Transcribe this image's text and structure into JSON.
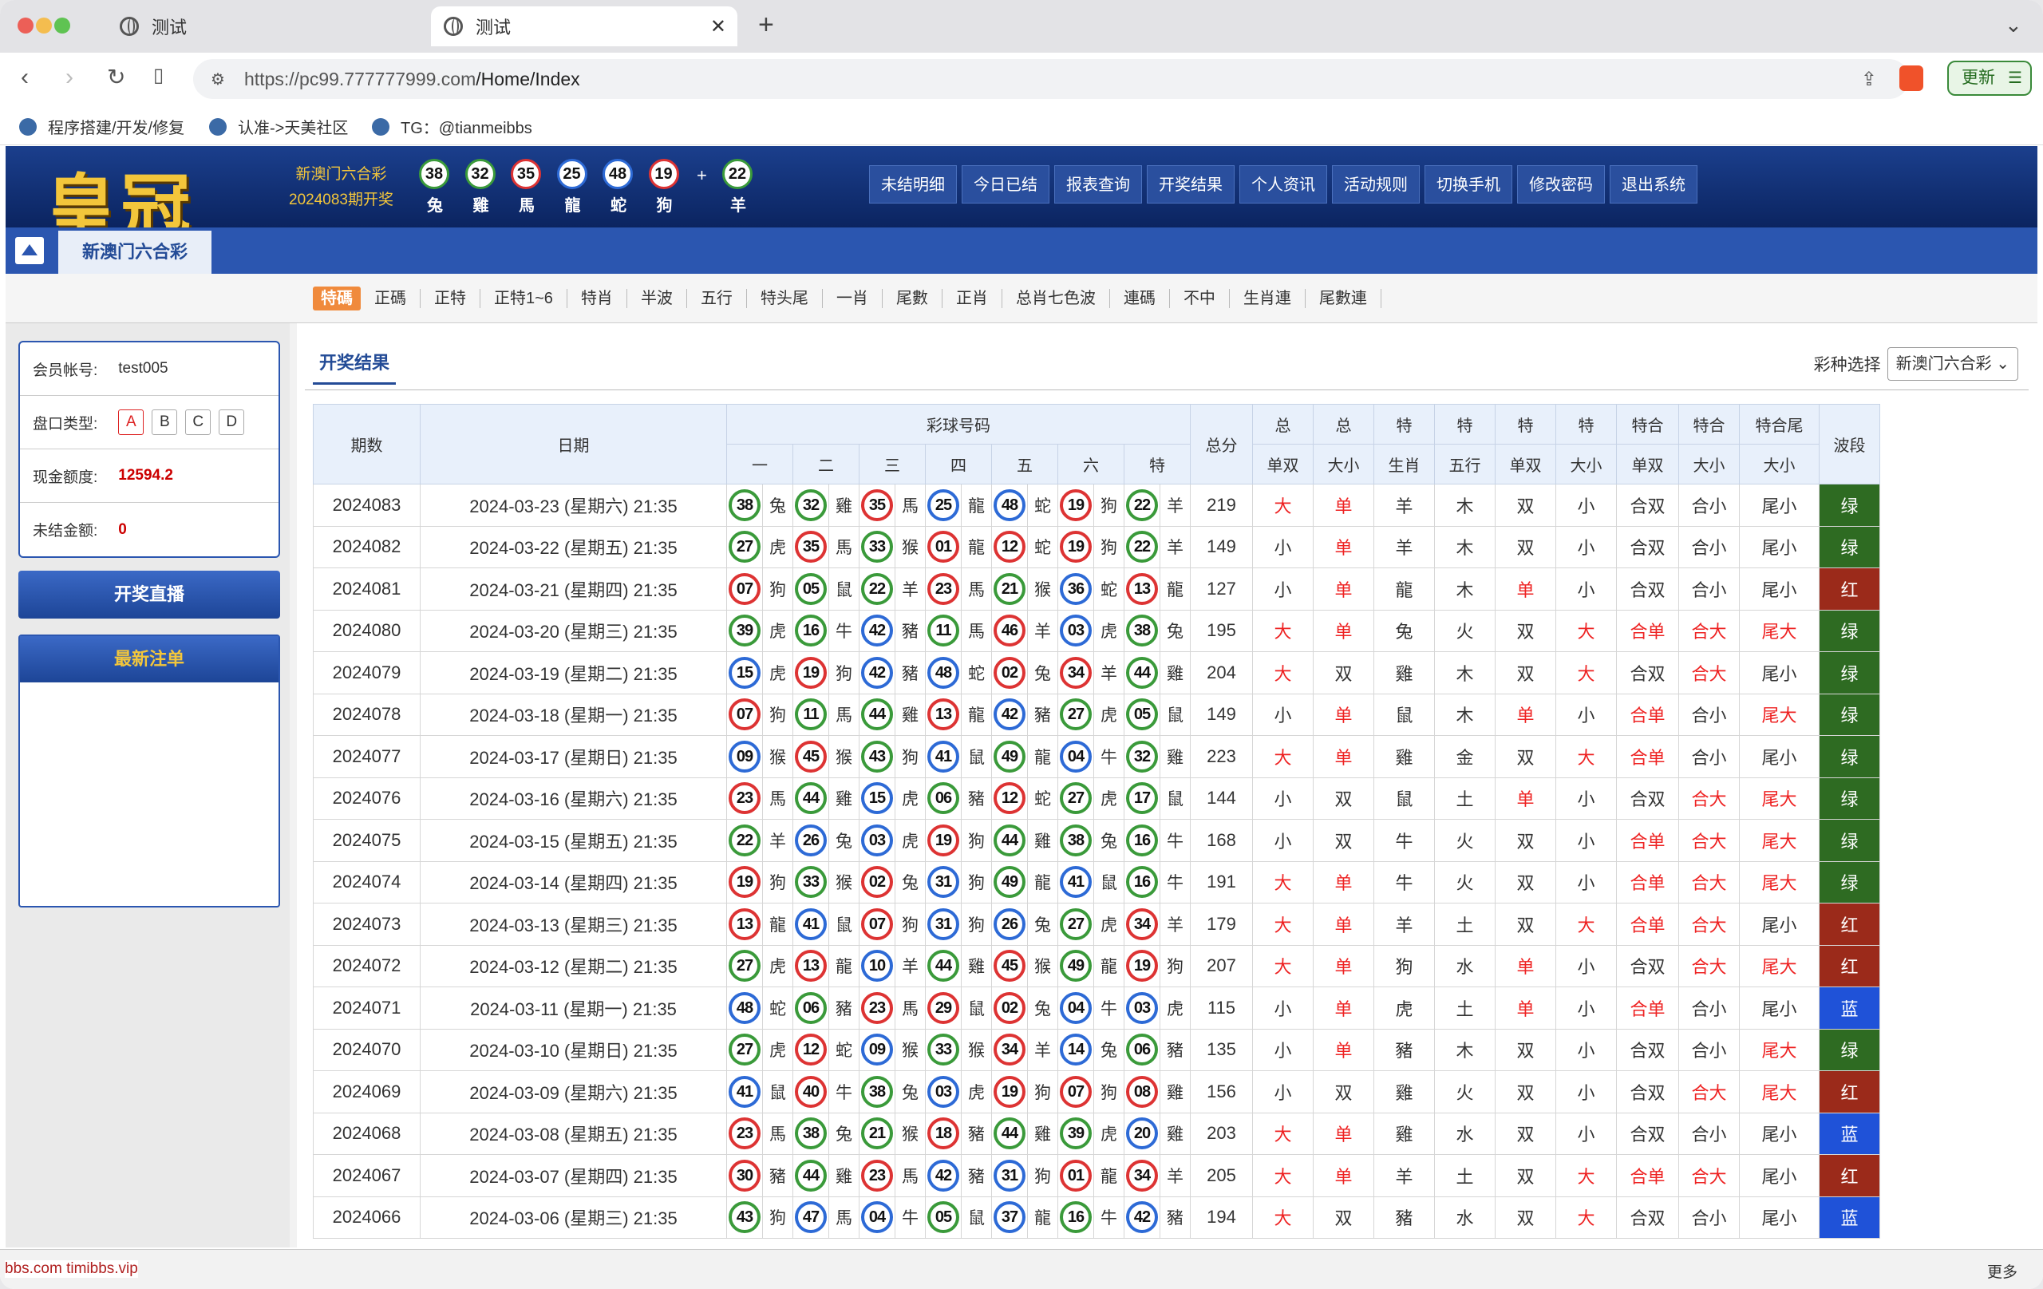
{
  "browser": {
    "tabs": [
      "测试",
      "测试"
    ],
    "url_host": "https://pc99.777777999.com",
    "url_path": "/Home/Index",
    "update_label": "更新",
    "bookmarks": [
      "程序搭建/开发/修复",
      "认准->天美社区",
      "TG：@tianmeibbs"
    ]
  },
  "header": {
    "logo": "皇冠",
    "lottery_name": "新澳门六合彩",
    "issue": "2024083期开奖",
    "balls": [
      {
        "n": "38",
        "z": "兔",
        "c": "#3a9a3a"
      },
      {
        "n": "32",
        "z": "雞",
        "c": "#3a9a3a"
      },
      {
        "n": "35",
        "z": "馬",
        "c": "#d33"
      },
      {
        "n": "25",
        "z": "龍",
        "c": "#2d6ad6"
      },
      {
        "n": "48",
        "z": "蛇",
        "c": "#2d6ad6"
      },
      {
        "n": "19",
        "z": "狗",
        "c": "#d33"
      }
    ],
    "special": {
      "n": "22",
      "z": "羊",
      "c": "#3a9a3a"
    },
    "plus": "+",
    "menu": [
      "未结明细",
      "今日已结",
      "报表查询",
      "开奖结果",
      "个人资讯",
      "活动规则",
      "切换手机",
      "修改密码",
      "退出系统"
    ],
    "lottery_tab": "新澳门六合彩"
  },
  "playtypes": [
    "特碼",
    "正碼",
    "正特",
    "正特1~6",
    "特肖",
    "半波",
    "五行",
    "特头尾",
    "一肖",
    "尾數",
    "正肖",
    "总肖七色波",
    "連碼",
    "不中",
    "生肖連",
    "尾數連"
  ],
  "account": {
    "member_label": "会员帐号:",
    "member": "test005",
    "plate_label": "盘口类型:",
    "plates": [
      "A",
      "B",
      "C",
      "D"
    ],
    "cash_label": "现金额度:",
    "cash": "12594.2",
    "unsettled_label": "未结金额:",
    "unsettled": "0"
  },
  "buttons": {
    "live": "开奖直播",
    "latest": "最新注单"
  },
  "results": {
    "title": "开奖结果",
    "select_label": "彩种选择",
    "select_value": "新澳门六合彩",
    "headers": {
      "issue": "期数",
      "date": "日期",
      "balls": "彩球号码",
      "positions": [
        "一",
        "二",
        "三",
        "四",
        "五",
        "六",
        "特"
      ],
      "total": "总分",
      "g1": [
        "总",
        "总",
        "特",
        "特",
        "特",
        "特",
        "特合",
        "特合",
        "特合尾"
      ],
      "g2": [
        "单双",
        "大小",
        "生肖",
        "五行",
        "单双",
        "大小",
        "单双",
        "大小",
        "大小"
      ],
      "wave": "波段"
    },
    "rows": [
      [
        "2024083",
        "2024-03-23 (星期六) 21:35",
        [
          [
            "38",
            "兔",
            "g"
          ],
          [
            "32",
            "雞",
            "g"
          ],
          [
            "35",
            "馬",
            "r"
          ],
          [
            "25",
            "龍",
            "b"
          ],
          [
            "48",
            "蛇",
            "b"
          ],
          [
            "19",
            "狗",
            "r"
          ],
          [
            "22",
            "羊",
            "g"
          ]
        ],
        "219",
        [
          "大",
          "单",
          "羊",
          "木",
          "双",
          "小",
          "合双",
          "合小",
          "尾小"
        ],
        "绿"
      ],
      [
        "2024082",
        "2024-03-22 (星期五) 21:35",
        [
          [
            "27",
            "虎",
            "g"
          ],
          [
            "35",
            "馬",
            "r"
          ],
          [
            "33",
            "猴",
            "g"
          ],
          [
            "01",
            "龍",
            "r"
          ],
          [
            "12",
            "蛇",
            "r"
          ],
          [
            "19",
            "狗",
            "r"
          ],
          [
            "22",
            "羊",
            "g"
          ]
        ],
        "149",
        [
          "小",
          "单",
          "羊",
          "木",
          "双",
          "小",
          "合双",
          "合小",
          "尾小"
        ],
        "绿"
      ],
      [
        "2024081",
        "2024-03-21 (星期四) 21:35",
        [
          [
            "07",
            "狗",
            "r"
          ],
          [
            "05",
            "鼠",
            "g"
          ],
          [
            "22",
            "羊",
            "g"
          ],
          [
            "23",
            "馬",
            "r"
          ],
          [
            "21",
            "猴",
            "g"
          ],
          [
            "36",
            "蛇",
            "b"
          ],
          [
            "13",
            "龍",
            "r"
          ]
        ],
        "127",
        [
          "小",
          "单",
          "龍",
          "木",
          "单",
          "小",
          "合双",
          "合小",
          "尾小"
        ],
        "红"
      ],
      [
        "2024080",
        "2024-03-20 (星期三) 21:35",
        [
          [
            "39",
            "虎",
            "g"
          ],
          [
            "16",
            "牛",
            "g"
          ],
          [
            "42",
            "豬",
            "b"
          ],
          [
            "11",
            "馬",
            "g"
          ],
          [
            "46",
            "羊",
            "r"
          ],
          [
            "03",
            "虎",
            "b"
          ],
          [
            "38",
            "兔",
            "g"
          ]
        ],
        "195",
        [
          "大",
          "单",
          "兔",
          "火",
          "双",
          "大",
          "合单",
          "合大",
          "尾大"
        ],
        "绿"
      ],
      [
        "2024079",
        "2024-03-19 (星期二) 21:35",
        [
          [
            "15",
            "虎",
            "b"
          ],
          [
            "19",
            "狗",
            "r"
          ],
          [
            "42",
            "豬",
            "b"
          ],
          [
            "48",
            "蛇",
            "b"
          ],
          [
            "02",
            "兔",
            "r"
          ],
          [
            "34",
            "羊",
            "r"
          ],
          [
            "44",
            "雞",
            "g"
          ]
        ],
        "204",
        [
          "大",
          "双",
          "雞",
          "木",
          "双",
          "大",
          "合双",
          "合大",
          "尾小"
        ],
        "绿"
      ],
      [
        "2024078",
        "2024-03-18 (星期一) 21:35",
        [
          [
            "07",
            "狗",
            "r"
          ],
          [
            "11",
            "馬",
            "g"
          ],
          [
            "44",
            "雞",
            "g"
          ],
          [
            "13",
            "龍",
            "r"
          ],
          [
            "42",
            "豬",
            "b"
          ],
          [
            "27",
            "虎",
            "g"
          ],
          [
            "05",
            "鼠",
            "g"
          ]
        ],
        "149",
        [
          "小",
          "单",
          "鼠",
          "木",
          "单",
          "小",
          "合单",
          "合小",
          "尾大"
        ],
        "绿"
      ],
      [
        "2024077",
        "2024-03-17 (星期日) 21:35",
        [
          [
            "09",
            "猴",
            "b"
          ],
          [
            "45",
            "猴",
            "r"
          ],
          [
            "43",
            "狗",
            "g"
          ],
          [
            "41",
            "鼠",
            "b"
          ],
          [
            "49",
            "龍",
            "g"
          ],
          [
            "04",
            "牛",
            "b"
          ],
          [
            "32",
            "雞",
            "g"
          ]
        ],
        "223",
        [
          "大",
          "单",
          "雞",
          "金",
          "双",
          "大",
          "合单",
          "合小",
          "尾小"
        ],
        "绿"
      ],
      [
        "2024076",
        "2024-03-16 (星期六) 21:35",
        [
          [
            "23",
            "馬",
            "r"
          ],
          [
            "44",
            "雞",
            "g"
          ],
          [
            "15",
            "虎",
            "b"
          ],
          [
            "06",
            "豬",
            "g"
          ],
          [
            "12",
            "蛇",
            "r"
          ],
          [
            "27",
            "虎",
            "g"
          ],
          [
            "17",
            "鼠",
            "g"
          ]
        ],
        "144",
        [
          "小",
          "双",
          "鼠",
          "土",
          "单",
          "小",
          "合双",
          "合大",
          "尾大"
        ],
        "绿"
      ],
      [
        "2024075",
        "2024-03-15 (星期五) 21:35",
        [
          [
            "22",
            "羊",
            "g"
          ],
          [
            "26",
            "兔",
            "b"
          ],
          [
            "03",
            "虎",
            "b"
          ],
          [
            "19",
            "狗",
            "r"
          ],
          [
            "44",
            "雞",
            "g"
          ],
          [
            "38",
            "兔",
            "g"
          ],
          [
            "16",
            "牛",
            "g"
          ]
        ],
        "168",
        [
          "小",
          "双",
          "牛",
          "火",
          "双",
          "小",
          "合单",
          "合大",
          "尾大"
        ],
        "绿"
      ],
      [
        "2024074",
        "2024-03-14 (星期四) 21:35",
        [
          [
            "19",
            "狗",
            "r"
          ],
          [
            "33",
            "猴",
            "g"
          ],
          [
            "02",
            "兔",
            "r"
          ],
          [
            "31",
            "狗",
            "b"
          ],
          [
            "49",
            "龍",
            "g"
          ],
          [
            "41",
            "鼠",
            "b"
          ],
          [
            "16",
            "牛",
            "g"
          ]
        ],
        "191",
        [
          "大",
          "单",
          "牛",
          "火",
          "双",
          "小",
          "合单",
          "合大",
          "尾大"
        ],
        "绿"
      ],
      [
        "2024073",
        "2024-03-13 (星期三) 21:35",
        [
          [
            "13",
            "龍",
            "r"
          ],
          [
            "41",
            "鼠",
            "b"
          ],
          [
            "07",
            "狗",
            "r"
          ],
          [
            "31",
            "狗",
            "b"
          ],
          [
            "26",
            "兔",
            "b"
          ],
          [
            "27",
            "虎",
            "g"
          ],
          [
            "34",
            "羊",
            "r"
          ]
        ],
        "179",
        [
          "大",
          "单",
          "羊",
          "土",
          "双",
          "大",
          "合单",
          "合大",
          "尾小"
        ],
        "红"
      ],
      [
        "2024072",
        "2024-03-12 (星期二) 21:35",
        [
          [
            "27",
            "虎",
            "g"
          ],
          [
            "13",
            "龍",
            "r"
          ],
          [
            "10",
            "羊",
            "b"
          ],
          [
            "44",
            "雞",
            "g"
          ],
          [
            "45",
            "猴",
            "r"
          ],
          [
            "49",
            "龍",
            "g"
          ],
          [
            "19",
            "狗",
            "r"
          ]
        ],
        "207",
        [
          "大",
          "单",
          "狗",
          "水",
          "单",
          "小",
          "合双",
          "合大",
          "尾大"
        ],
        "红"
      ],
      [
        "2024071",
        "2024-03-11 (星期一) 21:35",
        [
          [
            "48",
            "蛇",
            "b"
          ],
          [
            "06",
            "豬",
            "g"
          ],
          [
            "23",
            "馬",
            "r"
          ],
          [
            "29",
            "鼠",
            "r"
          ],
          [
            "02",
            "兔",
            "r"
          ],
          [
            "04",
            "牛",
            "b"
          ],
          [
            "03",
            "虎",
            "b"
          ]
        ],
        "115",
        [
          "小",
          "单",
          "虎",
          "土",
          "单",
          "小",
          "合单",
          "合小",
          "尾小"
        ],
        "蓝"
      ],
      [
        "2024070",
        "2024-03-10 (星期日) 21:35",
        [
          [
            "27",
            "虎",
            "g"
          ],
          [
            "12",
            "蛇",
            "r"
          ],
          [
            "09",
            "猴",
            "b"
          ],
          [
            "33",
            "猴",
            "g"
          ],
          [
            "34",
            "羊",
            "r"
          ],
          [
            "14",
            "兔",
            "b"
          ],
          [
            "06",
            "豬",
            "g"
          ]
        ],
        "135",
        [
          "小",
          "单",
          "豬",
          "木",
          "双",
          "小",
          "合双",
          "合小",
          "尾大"
        ],
        "绿"
      ],
      [
        "2024069",
        "2024-03-09 (星期六) 21:35",
        [
          [
            "41",
            "鼠",
            "b"
          ],
          [
            "40",
            "牛",
            "r"
          ],
          [
            "38",
            "兔",
            "g"
          ],
          [
            "03",
            "虎",
            "b"
          ],
          [
            "19",
            "狗",
            "r"
          ],
          [
            "07",
            "狗",
            "r"
          ],
          [
            "08",
            "雞",
            "r"
          ]
        ],
        "156",
        [
          "小",
          "双",
          "雞",
          "火",
          "双",
          "小",
          "合双",
          "合大",
          "尾大"
        ],
        "红"
      ],
      [
        "2024068",
        "2024-03-08 (星期五) 21:35",
        [
          [
            "23",
            "馬",
            "r"
          ],
          [
            "38",
            "兔",
            "g"
          ],
          [
            "21",
            "猴",
            "g"
          ],
          [
            "18",
            "豬",
            "r"
          ],
          [
            "44",
            "雞",
            "g"
          ],
          [
            "39",
            "虎",
            "g"
          ],
          [
            "20",
            "雞",
            "b"
          ]
        ],
        "203",
        [
          "大",
          "单",
          "雞",
          "水",
          "双",
          "小",
          "合双",
          "合小",
          "尾小"
        ],
        "蓝"
      ],
      [
        "2024067",
        "2024-03-07 (星期四) 21:35",
        [
          [
            "30",
            "豬",
            "r"
          ],
          [
            "44",
            "雞",
            "g"
          ],
          [
            "23",
            "馬",
            "r"
          ],
          [
            "42",
            "豬",
            "b"
          ],
          [
            "31",
            "狗",
            "b"
          ],
          [
            "01",
            "龍",
            "r"
          ],
          [
            "34",
            "羊",
            "r"
          ]
        ],
        "205",
        [
          "大",
          "单",
          "羊",
          "土",
          "双",
          "大",
          "合单",
          "合大",
          "尾小"
        ],
        "红"
      ],
      [
        "2024066",
        "2024-03-06 (星期三) 21:35",
        [
          [
            "43",
            "狗",
            "g"
          ],
          [
            "47",
            "馬",
            "b"
          ],
          [
            "04",
            "牛",
            "b"
          ],
          [
            "05",
            "鼠",
            "g"
          ],
          [
            "37",
            "龍",
            "b"
          ],
          [
            "16",
            "牛",
            "g"
          ],
          [
            "42",
            "豬",
            "b"
          ]
        ],
        "194",
        [
          "大",
          "双",
          "豬",
          "水",
          "双",
          "大",
          "合双",
          "合小",
          "尾小"
        ],
        "蓝"
      ]
    ]
  },
  "colors": {
    "g": "#3a9a3a",
    "r": "#d33",
    "b": "#2d6ad6",
    "wave_green": "#2e6b22",
    "wave_red": "#9b2a1a",
    "wave_blue": "#1f52d8"
  },
  "status": {
    "left": "bbs.com timibbs.vip",
    "right": "更多"
  }
}
